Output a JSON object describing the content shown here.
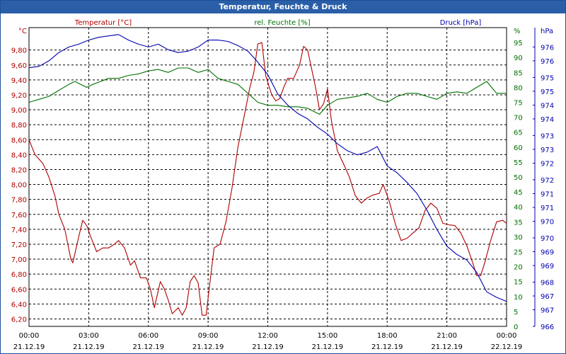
{
  "window": {
    "title": "Temperatur, Feuchte & Druck"
  },
  "colors": {
    "temperature": "#b00000",
    "humidity": "#007000",
    "pressure": "#0000b0",
    "grid": "#000000",
    "titlebar": "#2a5fa8"
  },
  "chart_data": {
    "type": "line",
    "title": "Temperatur, Feuchte & Druck",
    "grid": true,
    "legend_placement": "top",
    "x_ticks": [
      {
        "time": "00:00",
        "date": "21.12.19"
      },
      {
        "time": "03:00",
        "date": "21.12.19"
      },
      {
        "time": "06:00",
        "date": "21.12.19"
      },
      {
        "time": "09:00",
        "date": "21.12.19"
      },
      {
        "time": "12:00",
        "date": "21.12.19"
      },
      {
        "time": "15:00",
        "date": "21.12.19"
      },
      {
        "time": "18:00",
        "date": "21.12.19"
      },
      {
        "time": "21:00",
        "date": "21.12.19"
      },
      {
        "time": "00:00",
        "date": "22.12.19"
      }
    ],
    "x_range_hours": [
      0,
      24
    ],
    "axes": {
      "temperature": {
        "label": "Temperatur [°C]",
        "unit": "°C",
        "min": 6.1,
        "max": 10.1,
        "ticks": [
          "6,20",
          "6,40",
          "6,60",
          "6,80",
          "7,00",
          "7,20",
          "7,40",
          "7,60",
          "7,80",
          "8,00",
          "8,20",
          "8,40",
          "8,60",
          "8,80",
          "9,00",
          "9,20",
          "9,40",
          "9,60",
          "9,80"
        ],
        "tick_values": [
          6.2,
          6.4,
          6.6,
          6.8,
          7.0,
          7.2,
          7.4,
          7.6,
          7.8,
          8.0,
          8.2,
          8.4,
          8.6,
          8.8,
          9.0,
          9.2,
          9.4,
          9.6,
          9.8
        ]
      },
      "humidity": {
        "label": "rel. Feuchte [%]",
        "unit": "%",
        "min": 0,
        "max": 100,
        "ticks": [
          "0",
          "5",
          "10",
          "15",
          "20",
          "25",
          "30",
          "35",
          "40",
          "45",
          "50",
          "55",
          "60",
          "65",
          "70",
          "75",
          "80",
          "85",
          "90",
          "95"
        ],
        "tick_values": [
          0,
          5,
          10,
          15,
          20,
          25,
          30,
          35,
          40,
          45,
          50,
          55,
          60,
          65,
          70,
          75,
          80,
          85,
          90,
          95
        ]
      },
      "pressure": {
        "label": "Druck [hPa]",
        "unit": "hPa",
        "min": 966,
        "max": 976.8,
        "ticks": [
          "966",
          "967",
          "967",
          "968",
          "969",
          "969",
          "970",
          "970",
          "971",
          "971",
          "972",
          "972",
          "973",
          "973",
          "974",
          "974",
          "975",
          "975",
          "976",
          "976"
        ],
        "tick_values": [
          966,
          966.6,
          967.1,
          967.6,
          968.2,
          968.7,
          969.2,
          969.8,
          970.3,
          970.8,
          971.3,
          971.9,
          972.4,
          972.9,
          973.5,
          974.0,
          974.5,
          975.0,
          975.6,
          976.1
        ]
      }
    },
    "series": [
      {
        "name": "Temperatur [°C]",
        "axis": "temperature",
        "color": "#b00000",
        "points": [
          [
            0,
            8.6
          ],
          [
            0.3,
            8.4
          ],
          [
            0.7,
            8.28
          ],
          [
            1.0,
            8.1
          ],
          [
            1.3,
            7.85
          ],
          [
            1.5,
            7.6
          ],
          [
            1.8,
            7.4
          ],
          [
            2.1,
            7.0
          ],
          [
            2.2,
            6.95
          ],
          [
            2.5,
            7.3
          ],
          [
            2.7,
            7.52
          ],
          [
            2.9,
            7.45
          ],
          [
            3.1,
            7.3
          ],
          [
            3.4,
            7.1
          ],
          [
            3.7,
            7.15
          ],
          [
            4.0,
            7.15
          ],
          [
            4.3,
            7.2
          ],
          [
            4.5,
            7.25
          ],
          [
            4.8,
            7.15
          ],
          [
            5.1,
            6.92
          ],
          [
            5.3,
            6.98
          ],
          [
            5.6,
            6.75
          ],
          [
            5.9,
            6.75
          ],
          [
            6.1,
            6.6
          ],
          [
            6.3,
            6.35
          ],
          [
            6.6,
            6.7
          ],
          [
            6.8,
            6.6
          ],
          [
            7.0,
            6.45
          ],
          [
            7.2,
            6.27
          ],
          [
            7.5,
            6.35
          ],
          [
            7.7,
            6.25
          ],
          [
            7.9,
            6.35
          ],
          [
            8.1,
            6.7
          ],
          [
            8.3,
            6.78
          ],
          [
            8.5,
            6.68
          ],
          [
            8.7,
            6.25
          ],
          [
            8.9,
            6.25
          ],
          [
            9.1,
            6.7
          ],
          [
            9.3,
            7.15
          ],
          [
            9.6,
            7.2
          ],
          [
            9.9,
            7.5
          ],
          [
            10.2,
            7.95
          ],
          [
            10.5,
            8.5
          ],
          [
            10.8,
            8.9
          ],
          [
            11.1,
            9.3
          ],
          [
            11.3,
            9.5
          ],
          [
            11.5,
            9.88
          ],
          [
            11.7,
            9.9
          ],
          [
            11.9,
            9.45
          ],
          [
            12.2,
            9.2
          ],
          [
            12.4,
            9.12
          ],
          [
            12.6,
            9.15
          ],
          [
            12.8,
            9.3
          ],
          [
            13.0,
            9.42
          ],
          [
            13.3,
            9.42
          ],
          [
            13.6,
            9.6
          ],
          [
            13.8,
            9.85
          ],
          [
            14.0,
            9.8
          ],
          [
            14.2,
            9.55
          ],
          [
            14.4,
            9.3
          ],
          [
            14.6,
            9.0
          ],
          [
            14.8,
            9.08
          ],
          [
            15.0,
            9.28
          ],
          [
            15.2,
            8.85
          ],
          [
            15.5,
            8.45
          ],
          [
            15.8,
            8.28
          ],
          [
            16.1,
            8.1
          ],
          [
            16.4,
            7.85
          ],
          [
            16.7,
            7.75
          ],
          [
            17.0,
            7.82
          ],
          [
            17.3,
            7.86
          ],
          [
            17.6,
            7.88
          ],
          [
            17.8,
            8.0
          ],
          [
            18.1,
            7.78
          ],
          [
            18.4,
            7.48
          ],
          [
            18.7,
            7.25
          ],
          [
            19.0,
            7.28
          ],
          [
            19.3,
            7.35
          ],
          [
            19.6,
            7.42
          ],
          [
            19.9,
            7.65
          ],
          [
            20.2,
            7.75
          ],
          [
            20.5,
            7.68
          ],
          [
            20.8,
            7.48
          ],
          [
            21.1,
            7.46
          ],
          [
            21.4,
            7.45
          ],
          [
            21.7,
            7.35
          ],
          [
            22.0,
            7.18
          ],
          [
            22.3,
            6.95
          ],
          [
            22.5,
            6.78
          ],
          [
            22.7,
            6.78
          ],
          [
            22.9,
            6.95
          ],
          [
            23.2,
            7.25
          ],
          [
            23.5,
            7.5
          ],
          [
            23.8,
            7.52
          ],
          [
            24,
            7.48
          ]
        ]
      },
      {
        "name": "rel. Feuchte [%]",
        "axis": "humidity",
        "color": "#007000",
        "points": [
          [
            0,
            75
          ],
          [
            0.5,
            76
          ],
          [
            1.0,
            77
          ],
          [
            1.5,
            79
          ],
          [
            2.0,
            81
          ],
          [
            2.3,
            82
          ],
          [
            2.6,
            81
          ],
          [
            2.9,
            80
          ],
          [
            3.2,
            81
          ],
          [
            3.6,
            82
          ],
          [
            4.0,
            83
          ],
          [
            4.5,
            83
          ],
          [
            5.0,
            84
          ],
          [
            5.5,
            84.5
          ],
          [
            6.0,
            85.5
          ],
          [
            6.5,
            86
          ],
          [
            7.0,
            85
          ],
          [
            7.5,
            86.5
          ],
          [
            8.0,
            86.5
          ],
          [
            8.5,
            85
          ],
          [
            9.0,
            86
          ],
          [
            9.5,
            83
          ],
          [
            10.0,
            82
          ],
          [
            10.5,
            81
          ],
          [
            11.0,
            78
          ],
          [
            11.5,
            75
          ],
          [
            12.0,
            74
          ],
          [
            12.5,
            74
          ],
          [
            13.0,
            73.5
          ],
          [
            13.5,
            73.5
          ],
          [
            14.0,
            73
          ],
          [
            14.3,
            72
          ],
          [
            14.6,
            71
          ],
          [
            15.0,
            74
          ],
          [
            15.5,
            76
          ],
          [
            16.0,
            76.5
          ],
          [
            16.5,
            77
          ],
          [
            17.0,
            78
          ],
          [
            17.5,
            76
          ],
          [
            18.0,
            75
          ],
          [
            18.5,
            77
          ],
          [
            19.0,
            78
          ],
          [
            19.5,
            78
          ],
          [
            20.0,
            77
          ],
          [
            20.5,
            76
          ],
          [
            21.0,
            78
          ],
          [
            21.5,
            78.5
          ],
          [
            22.0,
            78
          ],
          [
            22.5,
            80
          ],
          [
            23.0,
            82
          ],
          [
            23.5,
            78
          ],
          [
            24,
            78
          ]
        ]
      },
      {
        "name": "Druck [hPa]",
        "axis": "pressure",
        "color": "#0000b0",
        "points": [
          [
            0,
            975.35
          ],
          [
            0.5,
            975.4
          ],
          [
            1.0,
            975.6
          ],
          [
            1.5,
            975.9
          ],
          [
            2.0,
            976.1
          ],
          [
            2.5,
            976.2
          ],
          [
            3.0,
            976.35
          ],
          [
            3.5,
            976.45
          ],
          [
            4.0,
            976.5
          ],
          [
            4.5,
            976.55
          ],
          [
            5.0,
            976.35
          ],
          [
            5.5,
            976.2
          ],
          [
            6.0,
            976.1
          ],
          [
            6.5,
            976.2
          ],
          [
            7.0,
            976.0
          ],
          [
            7.5,
            975.9
          ],
          [
            8.0,
            975.95
          ],
          [
            8.5,
            976.1
          ],
          [
            9.0,
            976.35
          ],
          [
            9.5,
            976.35
          ],
          [
            10.0,
            976.3
          ],
          [
            10.5,
            976.15
          ],
          [
            11.0,
            975.95
          ],
          [
            11.5,
            975.55
          ],
          [
            12.0,
            975.1
          ],
          [
            12.5,
            974.4
          ],
          [
            13.0,
            974.0
          ],
          [
            13.5,
            973.7
          ],
          [
            14.0,
            973.5
          ],
          [
            14.5,
            973.2
          ],
          [
            15.0,
            972.95
          ],
          [
            15.5,
            972.6
          ],
          [
            16.0,
            972.35
          ],
          [
            16.5,
            972.2
          ],
          [
            17.0,
            972.3
          ],
          [
            17.5,
            972.5
          ],
          [
            18.0,
            971.8
          ],
          [
            18.5,
            971.55
          ],
          [
            19.0,
            971.2
          ],
          [
            19.5,
            970.8
          ],
          [
            20.0,
            970.2
          ],
          [
            20.5,
            969.5
          ],
          [
            21.0,
            968.9
          ],
          [
            21.5,
            968.6
          ],
          [
            22.0,
            968.4
          ],
          [
            22.5,
            967.95
          ],
          [
            23.0,
            967.25
          ],
          [
            23.5,
            967.05
          ],
          [
            24,
            966.9
          ]
        ]
      }
    ]
  }
}
